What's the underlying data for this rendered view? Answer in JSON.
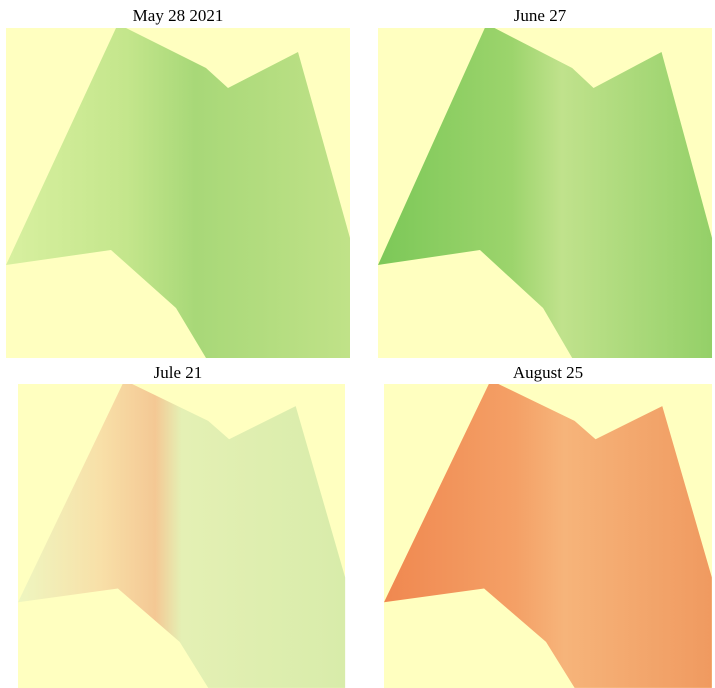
{
  "panels": [
    {
      "title": "May 28 2021"
    },
    {
      "title": "June 27"
    },
    {
      "title": "Jule 21"
    },
    {
      "title": "August 25"
    }
  ]
}
